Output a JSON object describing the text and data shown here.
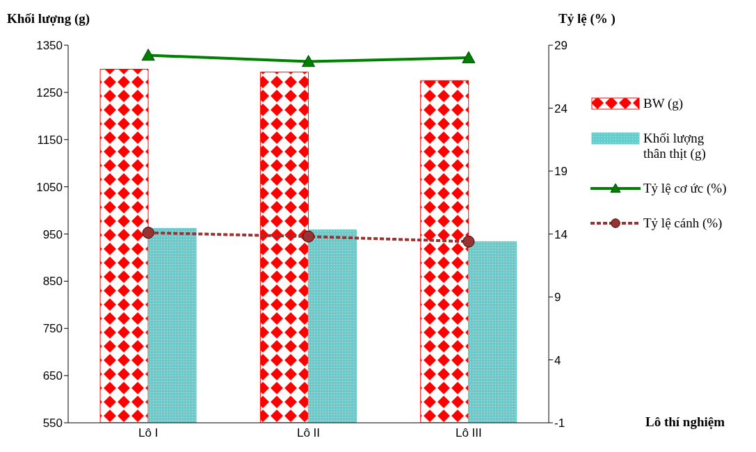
{
  "chart_data": {
    "type": "bar",
    "ylabel": "Khối lượng (g)",
    "y2label": "Tỷ lệ (% )",
    "annotations": [
      "Lô thí nghiệm"
    ],
    "categories": [
      "Lô I",
      "Lô II",
      "Lô III"
    ],
    "series": [
      {
        "name": "BW (g)",
        "color": "#ff0000",
        "values": [
          1299,
          1293,
          1275
        ]
      },
      {
        "name": "Khối lượng thân thịt (g)",
        "color": "#66cccc",
        "values": [
          962,
          959,
          934
        ]
      },
      {
        "name": "Tỷ lệ cơ ức (%)",
        "type": "line",
        "axis": "y2",
        "marker": "triangle",
        "color": "#008000",
        "values": [
          28.2,
          27.7,
          28.0
        ]
      },
      {
        "name": "Tỷ lệ cánh (%)",
        "type": "line",
        "axis": "y2",
        "marker": "circle",
        "line_style": "dashed",
        "color": "#993333",
        "values": [
          14.1,
          13.8,
          13.4
        ]
      }
    ],
    "ylim": [
      550,
      1350
    ],
    "yticks": [
      550,
      650,
      750,
      850,
      950,
      1050,
      1150,
      1250,
      1350
    ],
    "y2lim": [
      -1,
      29
    ],
    "y2ticks": [
      -1,
      4,
      9,
      14,
      19,
      24,
      29
    ],
    "grid": false,
    "legend": "right"
  }
}
